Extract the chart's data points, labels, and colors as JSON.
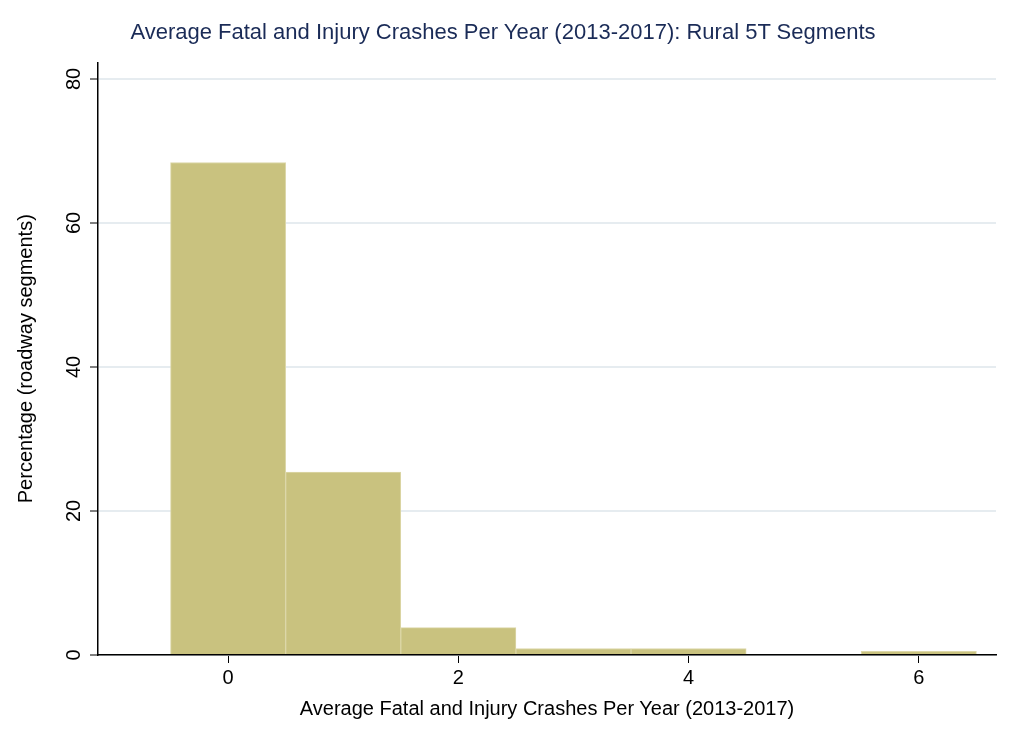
{
  "chart_data": {
    "type": "histogram",
    "title": "Average Fatal and Injury Crashes Per Year (2013-2017): Rural 5T Segments",
    "xlabel": "Average Fatal and Injury Crashes Per Year (2013-2017)",
    "ylabel": "Percentage (roadway segments)",
    "bins": [
      -0.5,
      0.5,
      1.5,
      2.5,
      3.5,
      4.5,
      5.5,
      6.5
    ],
    "values": [
      68.4,
      25.4,
      3.8,
      0.9,
      0.9,
      0,
      0.5
    ],
    "color": "#c9c27f",
    "xlim": [
      -1.13,
      6.67
    ],
    "xticks": [
      0,
      2,
      4,
      6
    ],
    "ylim": [
      0,
      82.3
    ],
    "yticks": [
      0,
      20,
      40,
      60,
      80
    ],
    "grid": "y",
    "legend": false
  }
}
